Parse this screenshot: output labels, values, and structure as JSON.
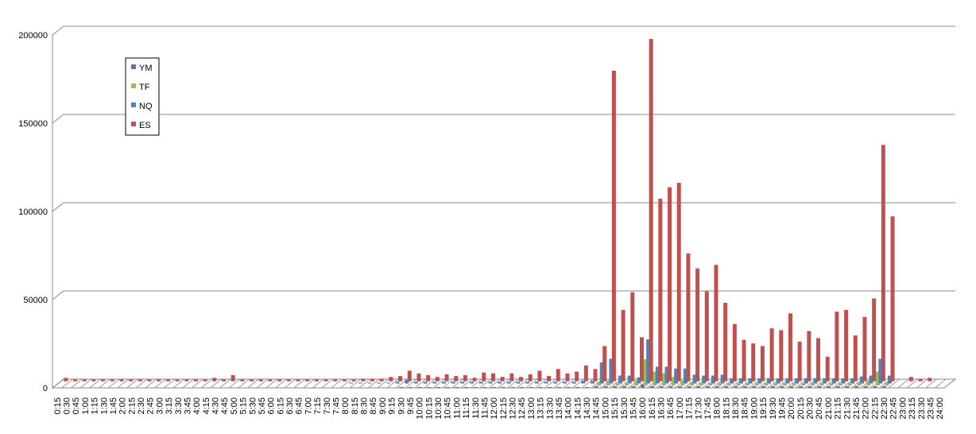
{
  "chart_data": {
    "type": "bar3d",
    "categories": [
      "0:15",
      "0:30",
      "0:45",
      "1:00",
      "1:15",
      "1:30",
      "1:45",
      "2:00",
      "2:15",
      "2:30",
      "2:45",
      "3:00",
      "3:15",
      "3:30",
      "3:45",
      "4:00",
      "4:15",
      "4:30",
      "4:45",
      "5:00",
      "5:15",
      "5:30",
      "5:45",
      "6:00",
      "6:15",
      "6:30",
      "6:45",
      "7:00",
      "7:15",
      "7:30",
      "7:45",
      "8:00",
      "8:15",
      "8:30",
      "8:45",
      "9:00",
      "9:15",
      "9:30",
      "9:45",
      "10:00",
      "10:15",
      "10:30",
      "10:45",
      "11:00",
      "11:15",
      "11:30",
      "11:45",
      "12:00",
      "12:15",
      "12:30",
      "12:45",
      "13:00",
      "13:15",
      "13:30",
      "13:45",
      "14:00",
      "14:15",
      "14:30",
      "14:45",
      "15:00",
      "15:15",
      "15:30",
      "15:45",
      "16:00",
      "16:15",
      "16:30",
      "16:45",
      "17:00",
      "17:15",
      "17:30",
      "17:45",
      "18:00",
      "18:15",
      "18:30",
      "18:45",
      "19:00",
      "19:15",
      "19:30",
      "19:45",
      "20:00",
      "20:15",
      "20:30",
      "20:45",
      "21:00",
      "21:15",
      "21:30",
      "21:45",
      "22:00",
      "22:15",
      "22:30",
      "22:45",
      "23:00",
      "23:15",
      "23:30",
      "23:45",
      "24:00"
    ],
    "series": [
      {
        "name": "YM",
        "color": "#8064a2",
        "values": [
          0,
          0,
          0,
          0,
          0,
          0,
          0,
          0,
          0,
          0,
          0,
          0,
          0,
          0,
          0,
          0,
          0,
          0,
          0,
          0,
          0,
          0,
          0,
          0,
          0,
          0,
          0,
          0,
          0,
          0,
          0,
          0,
          0,
          0,
          0,
          0,
          0,
          500,
          500,
          500,
          500,
          500,
          500,
          500,
          500,
          500,
          500,
          500,
          500,
          500,
          500,
          500,
          500,
          500,
          500,
          500,
          500,
          500,
          1000,
          1000,
          1000,
          1000,
          1000,
          2000,
          1000,
          1000,
          1000,
          1000,
          1000,
          1000,
          1000,
          1000,
          1000,
          1000,
          1000,
          1000,
          1000,
          1000,
          1000,
          1000,
          1000,
          1000,
          1000,
          1000,
          1000,
          1000,
          1000,
          1000,
          1000,
          1000,
          0,
          0,
          0,
          0,
          0,
          0
        ]
      },
      {
        "name": "TF",
        "color": "#9bbb59",
        "values": [
          0,
          0,
          0,
          0,
          0,
          0,
          0,
          0,
          0,
          0,
          0,
          0,
          0,
          0,
          0,
          0,
          0,
          0,
          0,
          0,
          0,
          0,
          0,
          0,
          0,
          0,
          0,
          0,
          0,
          0,
          0,
          0,
          0,
          0,
          0,
          0,
          0,
          0,
          0,
          0,
          0,
          0,
          0,
          0,
          0,
          0,
          0,
          0,
          0,
          0,
          0,
          0,
          0,
          0,
          0,
          0,
          0,
          0,
          2000,
          3000,
          1500,
          1500,
          3000,
          15000,
          8000,
          7000,
          5000,
          3000,
          2000,
          1500,
          1500,
          1500,
          1500,
          1500,
          1500,
          1500,
          1500,
          1500,
          1500,
          1500,
          1500,
          1500,
          1500,
          1500,
          1500,
          1500,
          2000,
          3000,
          8000,
          2000,
          0,
          0,
          0,
          0,
          0,
          0
        ]
      },
      {
        "name": "NQ",
        "color": "#4f81bd",
        "values": [
          0,
          0,
          0,
          0,
          0,
          0,
          0,
          0,
          0,
          0,
          0,
          0,
          0,
          0,
          0,
          0,
          0,
          0,
          0,
          0,
          0,
          0,
          0,
          0,
          0,
          0,
          0,
          0,
          0,
          0,
          0,
          500,
          500,
          500,
          500,
          500,
          1000,
          2000,
          1000,
          1000,
          1000,
          1000,
          1000,
          1000,
          1000,
          1000,
          1000,
          1000,
          1000,
          1000,
          1000,
          1000,
          1000,
          1000,
          1000,
          1000,
          1500,
          1500,
          12000,
          14000,
          4500,
          4500,
          3500,
          25000,
          9500,
          9500,
          8500,
          8500,
          5000,
          4500,
          4500,
          5000,
          3000,
          3000,
          3000,
          3000,
          3000,
          3000,
          3000,
          3000,
          3000,
          3000,
          3000,
          3000,
          3000,
          3000,
          4000,
          4500,
          14000,
          4500,
          0,
          0,
          0,
          0,
          0,
          0
        ]
      },
      {
        "name": "ES",
        "color": "#c0504d",
        "values": [
          2000,
          1000,
          1000,
          1000,
          1000,
          1000,
          1000,
          1000,
          1000,
          1000,
          1000,
          1000,
          1000,
          1000,
          1000,
          1000,
          2000,
          1000,
          3500,
          1000,
          1000,
          1000,
          1000,
          1000,
          1000,
          1000,
          1000,
          1000,
          1000,
          1000,
          1000,
          1000,
          1500,
          1500,
          1500,
          2500,
          3000,
          6000,
          4500,
          3500,
          2500,
          4000,
          3000,
          3500,
          2000,
          5000,
          4500,
          2500,
          4500,
          2500,
          4000,
          6000,
          3000,
          7000,
          4500,
          5500,
          9000,
          7000,
          20000,
          176000,
          40500,
          50500,
          25000,
          194000,
          103500,
          110000,
          112500,
          72500,
          64000,
          51000,
          66000,
          44500,
          32500,
          23500,
          21500,
          20000,
          30000,
          29000,
          38500,
          22500,
          28500,
          24500,
          14000,
          39500,
          40500,
          26000,
          36500,
          47000,
          134000,
          93500,
          0,
          2500,
          1500,
          2000,
          0,
          0
        ]
      }
    ],
    "ylim": [
      0,
      200000
    ],
    "yticks": [
      0,
      50000,
      100000,
      150000,
      200000
    ],
    "grid": true,
    "legend": "upper-left"
  }
}
